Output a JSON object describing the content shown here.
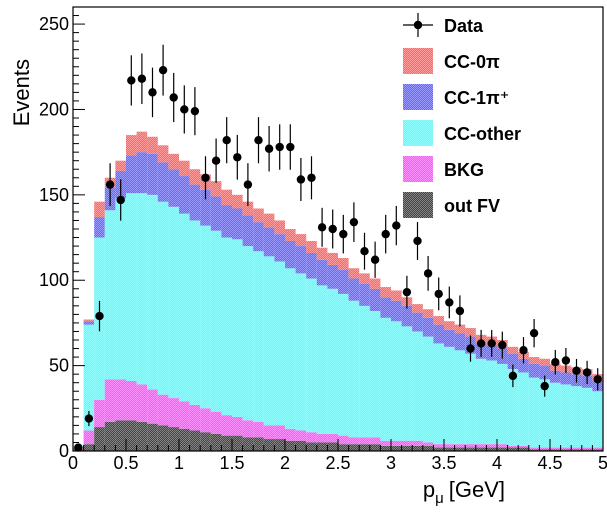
{
  "chart_data": {
    "type": "bar",
    "stacked": true,
    "xlabel": "p",
    "xlabel_sub": "μ",
    "xlabel_unit": "[GeV]",
    "ylabel": "Events",
    "xlim": [
      0,
      5
    ],
    "ylim": [
      0,
      260
    ],
    "x_ticks": [
      "0",
      "0.5",
      "1",
      "1.5",
      "2",
      "2.5",
      "3",
      "3.5",
      "4",
      "4.5",
      "5"
    ],
    "y_ticks": [
      "0",
      "50",
      "100",
      "150",
      "200",
      "250"
    ],
    "grid": false,
    "legend_position": "top-right",
    "bin_width": 0.1,
    "x": [
      0.05,
      0.15,
      0.25,
      0.35,
      0.45,
      0.55,
      0.65,
      0.75,
      0.85,
      0.95,
      1.05,
      1.15,
      1.25,
      1.35,
      1.45,
      1.55,
      1.65,
      1.75,
      1.85,
      1.95,
      2.05,
      2.15,
      2.25,
      2.35,
      2.45,
      2.55,
      2.65,
      2.75,
      2.85,
      2.95,
      3.05,
      3.15,
      3.25,
      3.35,
      3.45,
      3.55,
      3.65,
      3.75,
      3.85,
      3.95,
      4.05,
      4.15,
      4.25,
      4.35,
      4.45,
      4.55,
      4.65,
      4.75,
      4.85,
      4.95
    ],
    "series": [
      {
        "name": "out FV",
        "color": "#444444",
        "values": [
          1,
          4,
          14,
          17,
          18,
          18,
          17,
          16,
          15,
          14,
          13,
          12,
          11,
          10,
          9,
          9,
          8,
          8,
          7,
          7,
          6,
          6,
          5,
          5,
          5,
          4,
          4,
          4,
          4,
          3,
          3,
          3,
          3,
          3,
          2,
          2,
          2,
          2,
          2,
          2,
          2,
          2,
          2,
          1,
          1,
          1,
          1,
          1,
          1,
          1
        ]
      },
      {
        "name": "BKG",
        "color": "#ff55ff",
        "values": [
          1,
          8,
          16,
          25,
          24,
          23,
          22,
          20,
          18,
          17,
          16,
          15,
          14,
          13,
          12,
          11,
          10,
          9,
          8,
          8,
          7,
          6,
          6,
          5,
          5,
          5,
          4,
          4,
          4,
          3,
          3,
          3,
          3,
          2,
          2,
          2,
          2,
          2,
          2,
          2,
          2,
          1,
          1,
          1,
          1,
          1,
          1,
          1,
          1,
          1
        ]
      },
      {
        "name": "CC-other",
        "color": "#55ffff",
        "values": [
          1,
          62,
          95,
          99,
          106,
          110,
          112,
          114,
          113,
          112,
          110,
          108,
          107,
          106,
          104,
          104,
          102,
          100,
          99,
          96,
          94,
          92,
          90,
          87,
          85,
          83,
          80,
          77,
          74,
          72,
          70,
          67,
          64,
          62,
          59,
          57,
          55,
          53,
          50,
          49,
          47,
          45,
          43,
          41,
          40,
          38,
          37,
          36,
          35,
          33
        ]
      },
      {
        "name": "CC-1π⁺",
        "color": "#6666ff",
        "values": [
          0,
          2,
          12,
          13,
          16,
          22,
          24,
          24,
          23,
          22,
          22,
          21,
          21,
          20,
          19,
          18,
          18,
          17,
          17,
          16,
          16,
          16,
          15,
          15,
          14,
          14,
          13,
          13,
          13,
          12,
          12,
          12,
          11,
          11,
          11,
          10,
          10,
          10,
          9,
          9,
          9,
          9,
          8,
          8,
          8,
          7,
          7,
          7,
          7,
          6
        ]
      },
      {
        "name": "CC-0π",
        "color": "#ff6666",
        "values": [
          0,
          1,
          9,
          6,
          6,
          12,
          12,
          10,
          10,
          9,
          9,
          9,
          9,
          9,
          9,
          8,
          8,
          8,
          8,
          8,
          7,
          7,
          7,
          7,
          7,
          7,
          6,
          6,
          6,
          6,
          6,
          5,
          5,
          5,
          5,
          5,
          5,
          5,
          5,
          5,
          5,
          4,
          4,
          4,
          4,
          4,
          4,
          4,
          4,
          4
        ]
      }
    ],
    "data": {
      "name": "Data",
      "values": [
        2,
        19,
        79,
        156,
        147,
        217,
        218,
        210,
        223,
        207,
        200,
        199,
        160,
        170,
        182,
        172,
        156,
        182,
        177,
        178,
        178,
        159,
        160,
        131,
        130,
        127,
        134,
        117,
        112,
        127,
        132,
        93,
        123,
        104,
        92,
        87,
        82,
        60,
        63,
        63,
        62,
        44,
        59,
        69,
        38,
        52,
        53,
        47,
        46,
        42
      ],
      "errors": [
        1.4,
        4.4,
        8.9,
        12.5,
        12.1,
        14.7,
        14.8,
        14.5,
        14.9,
        14.4,
        14.1,
        14.1,
        12.6,
        13.0,
        13.5,
        13.1,
        12.5,
        13.5,
        13.3,
        13.3,
        13.3,
        12.6,
        12.6,
        11.4,
        11.4,
        11.3,
        11.6,
        10.8,
        10.6,
        11.3,
        11.5,
        9.6,
        11.1,
        10.2,
        9.6,
        9.3,
        9.1,
        7.7,
        7.9,
        7.9,
        7.9,
        6.6,
        7.7,
        8.3,
        6.2,
        7.2,
        7.3,
        6.9,
        6.8,
        6.5
      ]
    },
    "legend": [
      {
        "label": "Data",
        "kind": "marker"
      },
      {
        "label": "CC-0π",
        "kind": "fill",
        "color": "#ff6666"
      },
      {
        "label": "CC-1π⁺",
        "kind": "fill",
        "color": "#6666ff"
      },
      {
        "label": "CC-other",
        "kind": "fill",
        "color": "#55ffff"
      },
      {
        "label": "BKG",
        "kind": "fill",
        "color": "#ff55ff"
      },
      {
        "label": "out FV",
        "kind": "fill",
        "color": "#444444"
      }
    ]
  }
}
